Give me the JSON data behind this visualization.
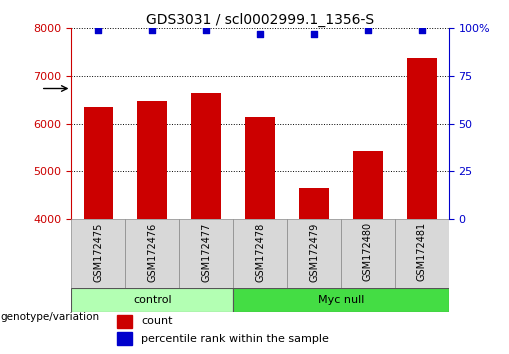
{
  "title": "GDS3031 / scl0002999.1_1356-S",
  "samples": [
    "GSM172475",
    "GSM172476",
    "GSM172477",
    "GSM172478",
    "GSM172479",
    "GSM172480",
    "GSM172481"
  ],
  "counts": [
    6350,
    6480,
    6650,
    6130,
    4650,
    5430,
    7380
  ],
  "percentiles": [
    99,
    99,
    99,
    97,
    97,
    99,
    99
  ],
  "ylim_left": [
    4000,
    8000
  ],
  "ylim_right": [
    0,
    100
  ],
  "yticks_left": [
    4000,
    5000,
    6000,
    7000,
    8000
  ],
  "yticks_right": [
    0,
    25,
    50,
    75,
    100
  ],
  "bar_color": "#cc0000",
  "dot_color": "#0000cc",
  "bar_width": 0.55,
  "group_control_color": "#b3ffb3",
  "group_myc_color": "#44dd44",
  "groups": [
    {
      "label": "control",
      "start": 0,
      "end": 3
    },
    {
      "label": "Myc null",
      "start": 3,
      "end": 7
    }
  ],
  "genotype_label": "genotype/variation",
  "legend_count_label": "count",
  "legend_pct_label": "percentile rank within the sample",
  "title_fontsize": 10,
  "tick_fontsize": 8,
  "label_fontsize": 8,
  "sample_fontsize": 7,
  "bg_color": "#ffffff"
}
